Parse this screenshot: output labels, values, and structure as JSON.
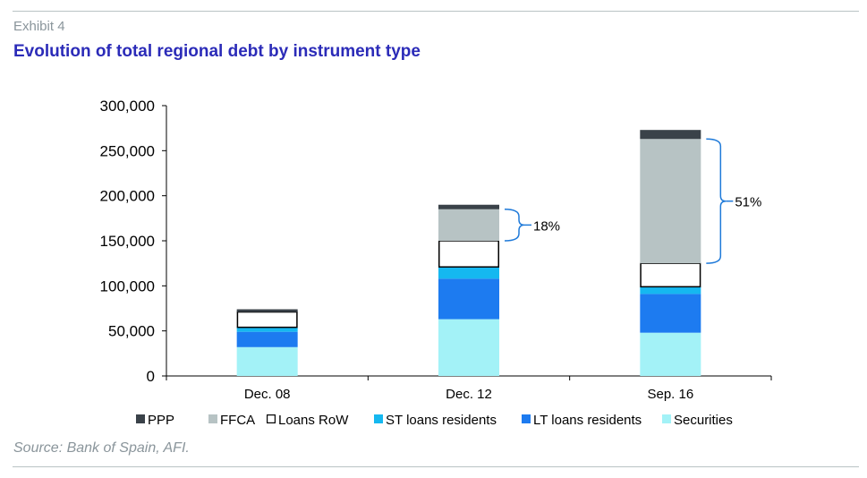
{
  "header": {
    "exhibit": "Exhibit 4",
    "title": "Evolution of total regional debt by instrument type"
  },
  "footer": {
    "source": "Source: Bank of Spain, AFI."
  },
  "chart_data": {
    "type": "bar",
    "stacked": true,
    "categories": [
      "Dec. 08",
      "Dec. 12",
      "Sep. 16"
    ],
    "ylim": [
      0,
      300000
    ],
    "yticks": [
      0,
      50000,
      100000,
      150000,
      200000,
      250000,
      300000
    ],
    "ytick_labels": [
      "0",
      "50,000",
      "100,000",
      "150,000",
      "200,000",
      "250,000",
      "300,000"
    ],
    "series": [
      {
        "name": "Securities",
        "color": "#a3f2f7",
        "values": [
          32000,
          63000,
          48000
        ]
      },
      {
        "name": "LT loans residents",
        "color": "#1d7bf0",
        "values": [
          17000,
          45000,
          43000
        ]
      },
      {
        "name": "ST loans residents",
        "color": "#15b8f0",
        "values": [
          5000,
          13000,
          8000
        ]
      },
      {
        "name": "Loans RoW",
        "color": "#ffffff",
        "outline": "#000000",
        "values": [
          17000,
          29000,
          26000
        ]
      },
      {
        "name": "FFCA",
        "color": "#b7c3c4",
        "values": [
          0,
          35000,
          138000
        ]
      },
      {
        "name": "PPP",
        "color": "#3a4249",
        "values": [
          3000,
          5000,
          10000
        ]
      }
    ],
    "legend_order": [
      "PPP",
      "FFCA",
      "Loans RoW",
      "ST loans residents",
      "LT loans residents",
      "Securities"
    ],
    "legend_position": "bottom",
    "annotations": [
      {
        "text": "18%",
        "category": "Dec. 12",
        "from": 150000,
        "to": 185000
      },
      {
        "text": "51%",
        "category": "Sep. 16",
        "from": 125000,
        "to": 263000
      }
    ],
    "bracket_color": "#1f7ad9"
  }
}
